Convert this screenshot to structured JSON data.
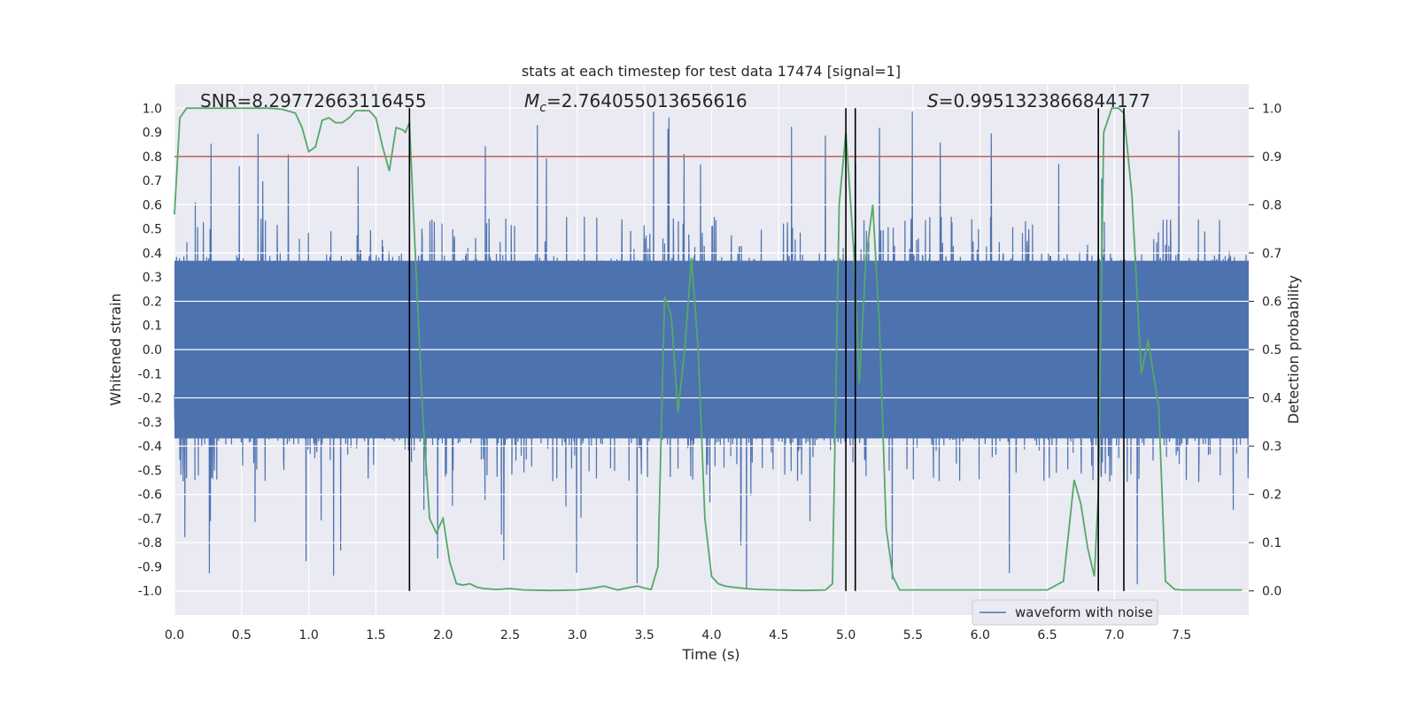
{
  "chart_data": {
    "type": "line",
    "title": "stats at each timestep for test data 17474 [signal=1]",
    "xlabel": "Time (s)",
    "ylabel": "Whitened strain",
    "y2label": "Detection probability",
    "xlim": [
      0,
      8
    ],
    "ylim": [
      -1.1,
      1.1
    ],
    "y2lim": [
      -0.05,
      1.05
    ],
    "xticks": [
      "0.0",
      "0.5",
      "1.0",
      "1.5",
      "2.0",
      "2.5",
      "3.0",
      "3.5",
      "4.0",
      "4.5",
      "5.0",
      "5.5",
      "6.0",
      "6.5",
      "7.0",
      "7.5"
    ],
    "yticks": [
      "-1.0",
      "-0.9",
      "-0.8",
      "-0.7",
      "-0.6",
      "-0.5",
      "-0.4",
      "-0.3",
      "-0.2",
      "-0.1",
      "0.0",
      "0.1",
      "0.2",
      "0.3",
      "0.4",
      "0.5",
      "0.6",
      "0.7",
      "0.8",
      "0.9",
      "1.0"
    ],
    "y2ticks": [
      "0.0",
      "0.1",
      "0.2",
      "0.3",
      "0.4",
      "0.5",
      "0.6",
      "0.7",
      "0.8",
      "0.9",
      "1.0"
    ],
    "grid": true,
    "legend": {
      "placement": "lower-right",
      "entries": [
        "waveform with noise"
      ]
    },
    "annotations": {
      "snr": "SNR=8.29772663116455",
      "mc_symbol": "M",
      "mc_sub": "c",
      "mc_value": "=2.764055013656616",
      "s_symbol": "S",
      "s_value": "=0.9951323866844177"
    },
    "threshold": {
      "y2": 0.9,
      "color": "#c44e52"
    },
    "vertical_lines_x": [
      1.75,
      5.0,
      5.07,
      6.88,
      7.07
    ],
    "series": [
      {
        "name": "waveform with noise",
        "color": "#4c72b0",
        "envelope": "dense noise approx. within ±0.4, peaks up to 1.0 and down to -1.0",
        "amplitude_typical": 0.4,
        "amplitude_max": 1.0
      },
      {
        "color": "#55a868",
        "axis": "right",
        "x": [
          0,
          0.04,
          0.09,
          0.12,
          0.2,
          0.3,
          0.5,
          0.7,
          0.8,
          0.9,
          0.95,
          1.0,
          1.05,
          1.1,
          1.15,
          1.2,
          1.25,
          1.3,
          1.35,
          1.45,
          1.5,
          1.55,
          1.6,
          1.65,
          1.7,
          1.72,
          1.75,
          1.78,
          1.85,
          1.9,
          1.95,
          2.0,
          2.05,
          2.1,
          2.15,
          2.2,
          2.25,
          2.3,
          2.4,
          2.5,
          2.6,
          2.8,
          3.0,
          3.1,
          3.2,
          3.3,
          3.4,
          3.45,
          3.5,
          3.55,
          3.6,
          3.65,
          3.7,
          3.75,
          3.8,
          3.85,
          3.9,
          3.95,
          4.0,
          4.05,
          4.1,
          4.15,
          4.25,
          4.35,
          4.5,
          4.7,
          4.85,
          4.9,
          4.95,
          5.0,
          5.06,
          5.1,
          5.15,
          5.2,
          5.25,
          5.3,
          5.35,
          5.4,
          5.45,
          5.5,
          5.6,
          6.0,
          6.5,
          6.62,
          6.7,
          6.75,
          6.8,
          6.85,
          6.88,
          6.92,
          6.98,
          7.03,
          7.07,
          7.13,
          7.2,
          7.25,
          7.33,
          7.38,
          7.45,
          7.5,
          7.6,
          7.8,
          7.95
        ],
        "y": [
          0.78,
          0.98,
          1.0,
          1.0,
          1.0,
          1.0,
          1.0,
          1.0,
          0.998,
          0.99,
          0.96,
          0.91,
          0.92,
          0.975,
          0.98,
          0.97,
          0.97,
          0.98,
          0.995,
          0.995,
          0.98,
          0.92,
          0.87,
          0.96,
          0.955,
          0.95,
          0.97,
          0.78,
          0.36,
          0.15,
          0.12,
          0.15,
          0.06,
          0.015,
          0.012,
          0.015,
          0.008,
          0.005,
          0.003,
          0.005,
          0.002,
          0.001,
          0.002,
          0.005,
          0.01,
          0.002,
          0.008,
          0.01,
          0.006,
          0.003,
          0.05,
          0.61,
          0.57,
          0.37,
          0.5,
          0.69,
          0.5,
          0.15,
          0.03,
          0.015,
          0.01,
          0.008,
          0.005,
          0.003,
          0.002,
          0.001,
          0.002,
          0.015,
          0.8,
          0.95,
          0.7,
          0.43,
          0.69,
          0.8,
          0.55,
          0.13,
          0.03,
          0.002,
          0.002,
          0.002,
          0.002,
          0.002,
          0.002,
          0.02,
          0.23,
          0.18,
          0.09,
          0.03,
          0.2,
          0.95,
          1.0,
          1.0,
          0.99,
          0.82,
          0.45,
          0.52,
          0.38,
          0.02,
          0.003,
          0.002,
          0.002,
          0.002,
          0.002
        ]
      }
    ]
  }
}
